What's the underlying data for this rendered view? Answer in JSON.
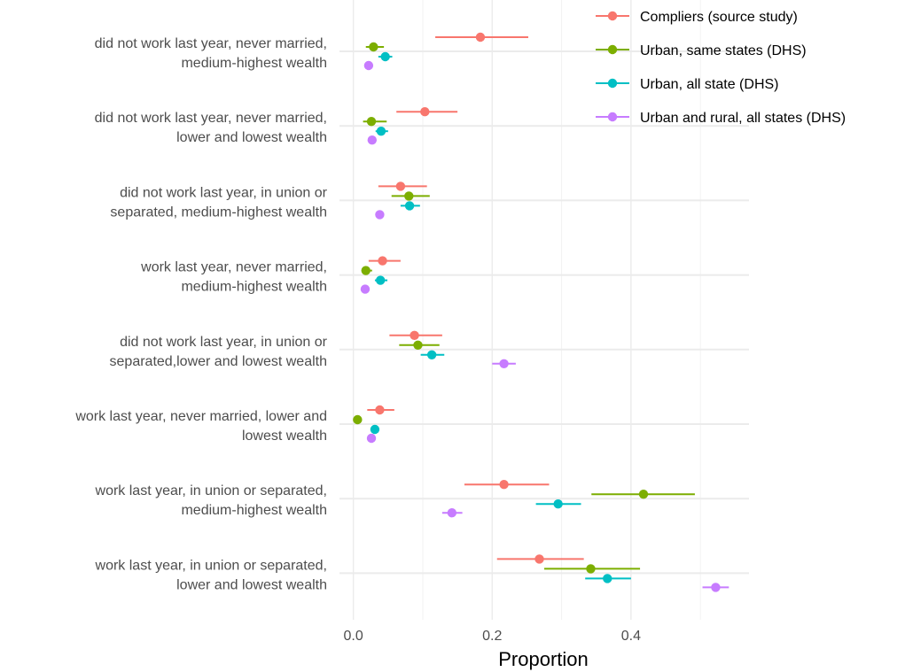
{
  "chart_data": {
    "type": "scatter",
    "title": "",
    "xlabel": "Proportion",
    "ylabel": "",
    "xlim": [
      -0.02,
      0.57
    ],
    "xticks": [
      0.0,
      0.2,
      0.4
    ],
    "xtick_labels": [
      "0.0",
      "0.2",
      "0.4"
    ],
    "grid": true,
    "legend_position": "top-right",
    "categories": [
      [
        "did not work last year, never married,",
        "medium-highest wealth"
      ],
      [
        "did not work last year, never married,",
        "lower and lowest wealth"
      ],
      [
        "did not work last year, in union or",
        "separated, medium-highest wealth"
      ],
      [
        "work last year, never married,",
        "medium-highest wealth"
      ],
      [
        "did not work last year, in union or",
        "separated,lower and lowest wealth"
      ],
      [
        "work last year, never married, lower and",
        "lowest wealth"
      ],
      [
        "work last year, in union or separated,",
        "medium-highest wealth"
      ],
      [
        "work last year, in union or separated,",
        "lower and lowest wealth"
      ]
    ],
    "series": [
      {
        "name": "Compliers (source study)",
        "color": "#F8766D",
        "values": [
          0.183,
          0.103,
          0.068,
          0.042,
          0.088,
          0.038,
          0.217,
          0.268
        ],
        "lower": [
          0.118,
          0.062,
          0.036,
          0.022,
          0.052,
          0.02,
          0.16,
          0.207
        ],
        "upper": [
          0.252,
          0.15,
          0.106,
          0.068,
          0.128,
          0.059,
          0.282,
          0.332
        ]
      },
      {
        "name": "Urban, same states (DHS)",
        "color": "#7CAE00",
        "values": [
          0.029,
          0.026,
          0.08,
          0.018,
          0.093,
          0.006,
          0.418,
          0.342
        ],
        "lower": [
          0.018,
          0.014,
          0.055,
          0.012,
          0.066,
          null,
          0.343,
          0.275
        ],
        "upper": [
          0.044,
          0.048,
          0.11,
          0.027,
          0.124,
          null,
          0.492,
          0.413
        ]
      },
      {
        "name": "Urban, all state (DHS)",
        "color": "#00BFC4",
        "values": [
          0.046,
          0.04,
          0.081,
          0.039,
          0.113,
          0.031,
          0.295,
          0.366
        ],
        "lower": [
          0.036,
          0.032,
          0.068,
          0.031,
          0.097,
          0.026,
          0.263,
          0.334
        ],
        "upper": [
          0.056,
          0.05,
          0.096,
          0.049,
          0.131,
          0.036,
          0.328,
          0.4
        ]
      },
      {
        "name": "Urban and rural, all states (DHS)",
        "color": "#C77CFF",
        "values": [
          0.022,
          0.027,
          0.038,
          0.017,
          0.217,
          0.026,
          0.142,
          0.522
        ],
        "lower": [
          0.018,
          0.022,
          0.033,
          0.013,
          0.2,
          0.022,
          0.128,
          0.503
        ],
        "upper": [
          0.026,
          0.032,
          0.043,
          0.021,
          0.234,
          0.03,
          0.157,
          0.541
        ]
      }
    ]
  }
}
